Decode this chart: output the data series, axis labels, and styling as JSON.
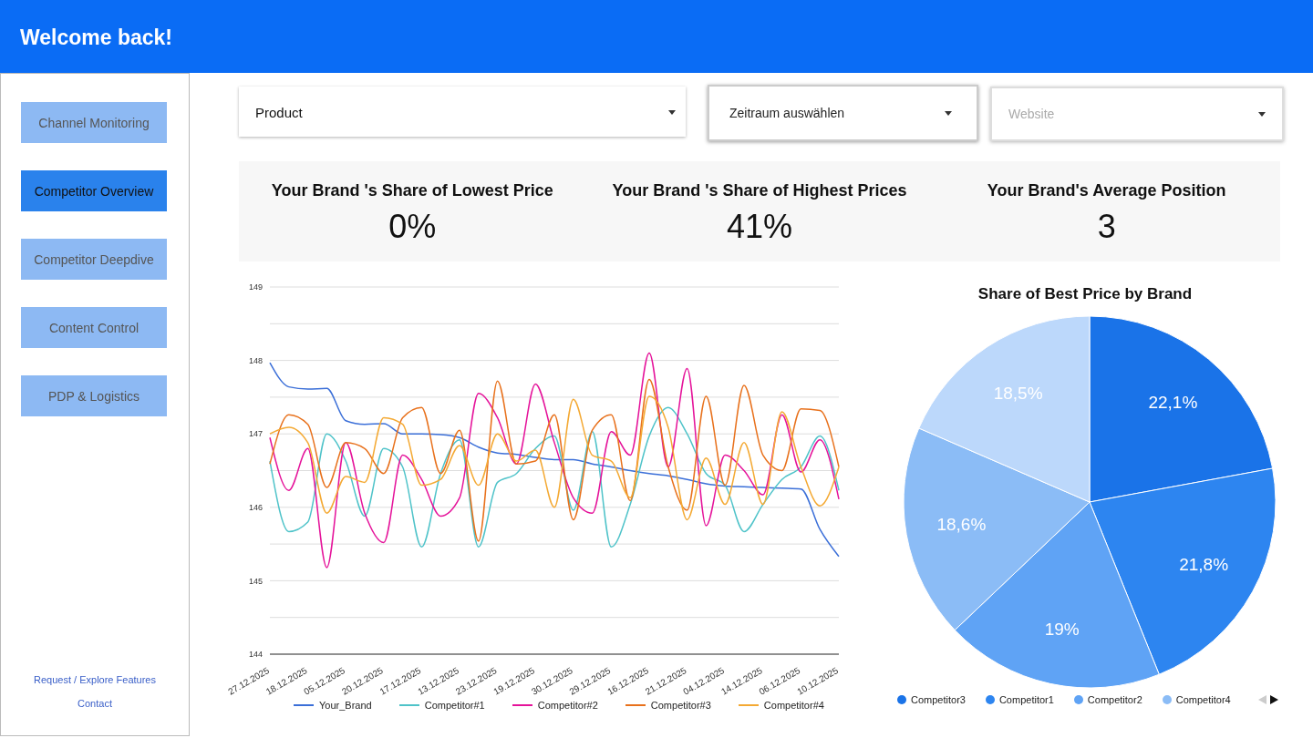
{
  "chart_data": [
    {
      "type": "other",
      "title": "Welcome back!",
      "annotations": [
        "Channel Monitoring",
        "Competitor Overview",
        "Competitor Deepdive",
        "Content Control",
        "PDP & Logistics",
        "Product",
        "Zeitraum auswählen",
        "Website",
        "Request / Explore Features",
        "Contact"
      ]
    },
    {
      "type": "other",
      "annotations": [
        "Your Brand 's Share of Lowest Price",
        "0%",
        "Your Brand 's Share of Highest Prices",
        "41%",
        "Your Brand's Average Position",
        "3"
      ]
    },
    {
      "type": "line",
      "categories": [
        "27.12.2025",
        null,
        "18.12.2025",
        null,
        "05.12.2025",
        null,
        "20.12.2025",
        null,
        "17.12.2025",
        null,
        "13.12.2025",
        null,
        "23.12.2025",
        null,
        "19.12.2025",
        null,
        "30.12.2025",
        null,
        "29.12.2025",
        null,
        "16.12.2025",
        null,
        "21.12.2025",
        null,
        "04.12.2025",
        null,
        "14.12.2025",
        null,
        "06.12.2025",
        null,
        "10.12.2025"
      ],
      "ylim": [
        144,
        149
      ],
      "yticks": [
        144,
        {
          "value": 144.5,
          "label": null
        },
        145,
        {
          "value": 145.5,
          "label": null
        },
        146,
        {
          "value": 146.5,
          "label": null
        },
        147,
        {
          "value": 147.5,
          "label": null
        },
        148,
        {
          "value": 148.5,
          "label": null
        },
        149
      ],
      "grid": "y",
      "legend": "bottom",
      "marker": "none",
      "line_style": "solid",
      "series": [
        {
          "name": "Your_Brand",
          "color": "#3b6fd8",
          "values": [
            147.97,
            147.64,
            147.61,
            147.62,
            147.18,
            147.13,
            147.14,
            147.0,
            147.0,
            146.99,
            146.95,
            146.82,
            146.74,
            146.72,
            146.68,
            146.65,
            146.65,
            146.59,
            146.55,
            146.5,
            146.46,
            146.43,
            146.38,
            146.32,
            146.29,
            146.28,
            146.27,
            146.26,
            146.25,
            145.7,
            145.33
          ]
        },
        {
          "name": "Competitor#1",
          "color": "#4fc3c9",
          "values": [
            146.63,
            145.67,
            145.8,
            147.0,
            146.63,
            145.88,
            146.8,
            146.55,
            145.46,
            146.46,
            146.92,
            145.46,
            146.34,
            146.46,
            146.8,
            146.97,
            145.96,
            147.03,
            145.46,
            146.04,
            146.97,
            147.36,
            147.0,
            146.46,
            146.3,
            145.67,
            146.04,
            146.38,
            146.55,
            146.97,
            146.23
          ]
        },
        {
          "name": "Competitor#2",
          "color": "#e5139a",
          "values": [
            146.95,
            146.23,
            146.8,
            145.18,
            146.88,
            145.92,
            145.52,
            146.71,
            146.38,
            145.88,
            146.13,
            147.55,
            147.22,
            146.59,
            147.68,
            146.88,
            146.13,
            145.92,
            147.03,
            146.71,
            148.1,
            146.55,
            147.89,
            145.75,
            146.71,
            146.5,
            146.17,
            147.26,
            146.48,
            146.92,
            146.11
          ]
        },
        {
          "name": "Competitor#3",
          "color": "#e8711c",
          "values": [
            146.59,
            147.26,
            147.13,
            146.27,
            146.88,
            146.8,
            146.46,
            147.22,
            147.36,
            146.46,
            147.05,
            145.54,
            147.72,
            146.59,
            146.63,
            147.26,
            145.83,
            147.05,
            147.26,
            146.09,
            147.74,
            146.55,
            145.96,
            147.51,
            146.3,
            147.66,
            146.71,
            146.5,
            147.34,
            147.32,
            146.55
          ]
        },
        {
          "name": "Competitor#4",
          "color": "#f4a933",
          "values": [
            147.0,
            147.09,
            146.88,
            145.92,
            146.42,
            146.34,
            147.22,
            147.13,
            146.3,
            146.38,
            146.84,
            146.3,
            147.0,
            146.63,
            146.78,
            146.0,
            147.47,
            146.71,
            146.63,
            146.13,
            147.51,
            147.09,
            145.83,
            146.67,
            146.04,
            146.88,
            146.04,
            147.3,
            146.55,
            146.02,
            146.55
          ]
        }
      ]
    },
    {
      "type": "pie",
      "title": "Share of Best Price by Brand",
      "categories": [
        "Competitor3",
        "Competitor1",
        "Competitor2",
        "Competitor4",
        null
      ],
      "values": [
        22.1,
        21.8,
        19,
        18.6,
        18.5
      ],
      "value_labels": [
        "22,1%",
        "21,8%",
        "19%",
        "18,6%",
        "18,5%"
      ],
      "colors": [
        "#1a73e8",
        "#2d85f0",
        "#5fa3f5",
        "#8bbcf6",
        "#bcd8fb"
      ],
      "legend": "bottom"
    }
  ]
}
